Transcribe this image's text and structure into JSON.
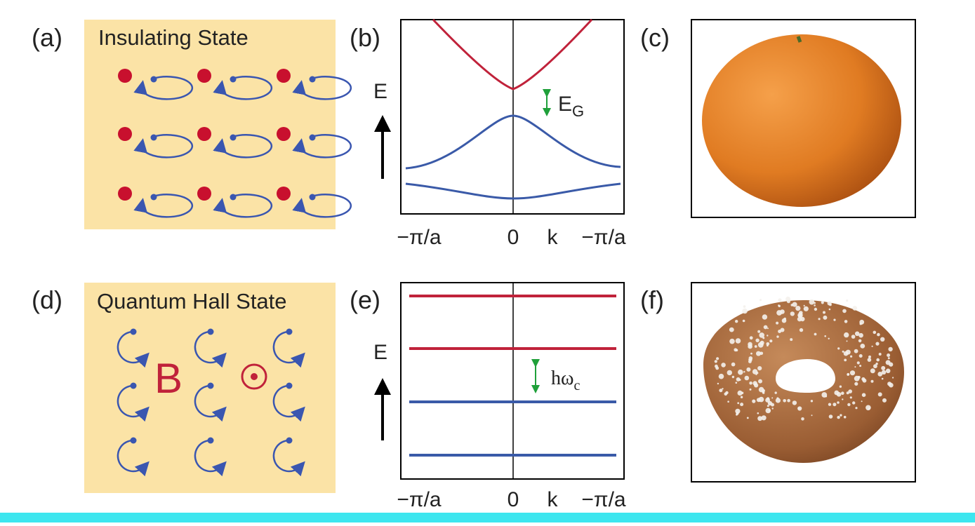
{
  "panels": [
    {
      "label": "(a)",
      "title": "Insulating State"
    },
    {
      "label": "(b)",
      "axis": "E",
      "gap": {
        "symbol": "E",
        "subscript": "G"
      },
      "x_labels": [
        "−π/a",
        "0",
        "k",
        "−π/a"
      ]
    },
    {
      "label": "(c)"
    },
    {
      "label": "(d)",
      "title": "Quantum Hall State",
      "field": "B"
    },
    {
      "label": "(e)",
      "axis": "E",
      "gap": {
        "symbol": "hω",
        "subscript": "c"
      },
      "x_labels": [
        "−π/a",
        "0",
        "k",
        "−π/a"
      ]
    },
    {
      "label": "(f)"
    }
  ]
}
